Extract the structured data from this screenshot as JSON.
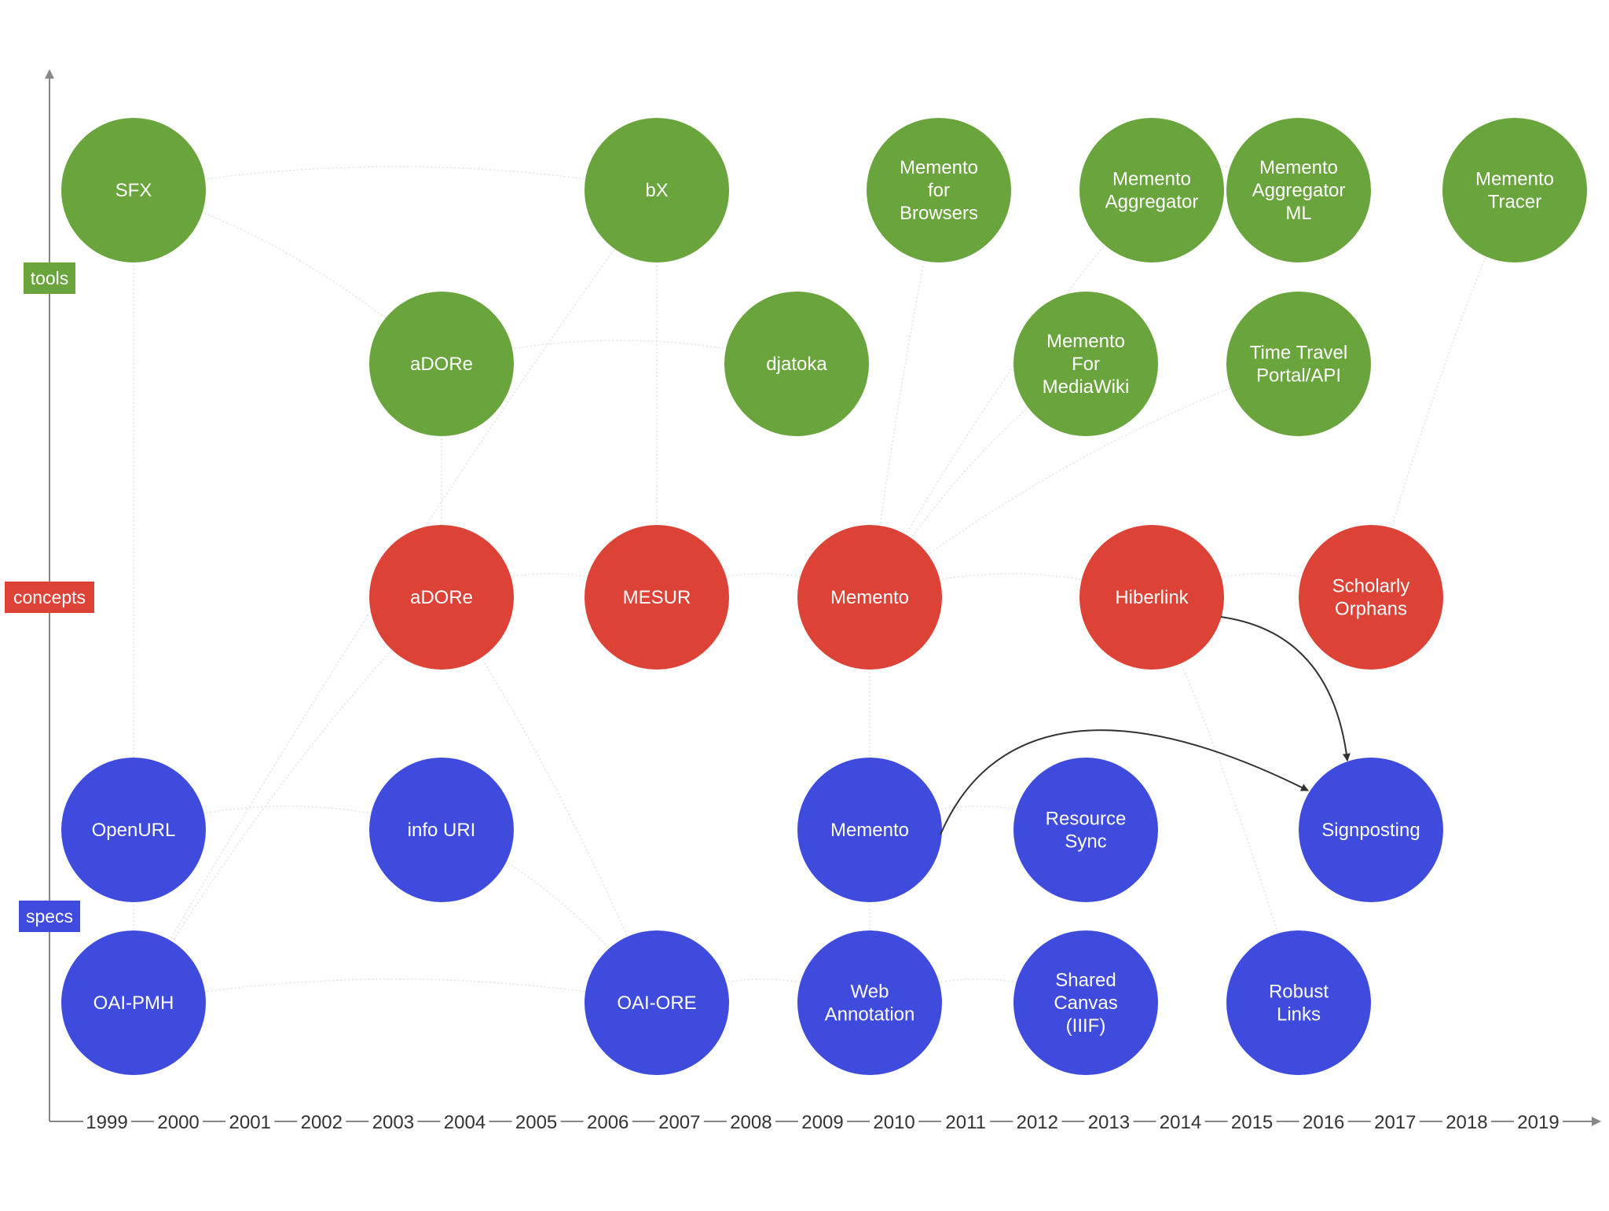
{
  "colors": {
    "tools": "#6aa43c",
    "concepts": "#dc4236",
    "specs": "#3f4bdc",
    "axis": "#888888",
    "faint_link": "#d9d9d9",
    "arrow": "#333333"
  },
  "categories": [
    {
      "id": "tools",
      "label": "tools"
    },
    {
      "id": "concepts",
      "label": "concepts"
    },
    {
      "id": "specs",
      "label": "specs"
    }
  ],
  "years": [
    "1999",
    "2000",
    "2001",
    "2002",
    "2003",
    "2004",
    "2005",
    "2006",
    "2007",
    "2008",
    "2009",
    "2010",
    "2011",
    "2012",
    "2013",
    "2014",
    "2015",
    "2016",
    "2017",
    "2018",
    "2019"
  ],
  "nodes": [
    {
      "id": "sfx",
      "cat": "tools",
      "lines": [
        "SFX"
      ]
    },
    {
      "id": "bx",
      "cat": "tools",
      "lines": [
        "bX"
      ]
    },
    {
      "id": "memento-browsers",
      "cat": "tools",
      "lines": [
        "Memento",
        "for",
        "Browsers"
      ]
    },
    {
      "id": "memento-aggregator",
      "cat": "tools",
      "lines": [
        "Memento",
        "Aggregator"
      ]
    },
    {
      "id": "memento-aggregator-ml",
      "cat": "tools",
      "lines": [
        "Memento",
        "Aggregator",
        "ML"
      ]
    },
    {
      "id": "memento-tracer",
      "cat": "tools",
      "lines": [
        "Memento",
        "Tracer"
      ]
    },
    {
      "id": "adore-tool",
      "cat": "tools",
      "lines": [
        "aDORe"
      ]
    },
    {
      "id": "djatoka",
      "cat": "tools",
      "lines": [
        "djatoka"
      ]
    },
    {
      "id": "memento-mediawiki",
      "cat": "tools",
      "lines": [
        "Memento",
        "For",
        "MediaWiki"
      ]
    },
    {
      "id": "time-travel",
      "cat": "tools",
      "lines": [
        "Time Travel",
        "Portal/API"
      ]
    },
    {
      "id": "adore-concept",
      "cat": "concepts",
      "lines": [
        "aDORe"
      ]
    },
    {
      "id": "mesur",
      "cat": "concepts",
      "lines": [
        "MESUR"
      ]
    },
    {
      "id": "memento-concept",
      "cat": "concepts",
      "lines": [
        "Memento"
      ]
    },
    {
      "id": "hiberlink",
      "cat": "concepts",
      "lines": [
        "Hiberlink"
      ]
    },
    {
      "id": "scholarly-orphans",
      "cat": "concepts",
      "lines": [
        "Scholarly",
        "Orphans"
      ]
    },
    {
      "id": "openurl",
      "cat": "specs",
      "lines": [
        "OpenURL"
      ]
    },
    {
      "id": "info-uri",
      "cat": "specs",
      "lines": [
        "info URI"
      ]
    },
    {
      "id": "memento-spec",
      "cat": "specs",
      "lines": [
        "Memento"
      ]
    },
    {
      "id": "resource-sync",
      "cat": "specs",
      "lines": [
        "Resource",
        "Sync"
      ]
    },
    {
      "id": "signposting",
      "cat": "specs",
      "lines": [
        "Signposting"
      ]
    },
    {
      "id": "oai-pmh",
      "cat": "specs",
      "lines": [
        "OAI-PMH"
      ]
    },
    {
      "id": "oai-ore",
      "cat": "specs",
      "lines": [
        "OAI-ORE"
      ]
    },
    {
      "id": "web-annotation",
      "cat": "specs",
      "lines": [
        "Web",
        "Annotation"
      ]
    },
    {
      "id": "shared-canvas",
      "cat": "specs",
      "lines": [
        "Shared",
        "Canvas",
        "(IIIF)"
      ]
    },
    {
      "id": "robust-links",
      "cat": "specs",
      "lines": [
        "Robust",
        "Links"
      ]
    }
  ],
  "arrows": [
    {
      "from": "hiberlink",
      "to": "signposting"
    },
    {
      "from": "memento-spec",
      "to": "signposting"
    }
  ],
  "faint_links": [
    [
      "sfx",
      "bx"
    ],
    [
      "sfx",
      "openurl"
    ],
    [
      "openurl",
      "info-uri"
    ],
    [
      "openurl",
      "oai-pmh"
    ],
    [
      "oai-pmh",
      "oai-ore"
    ],
    [
      "oai-pmh",
      "adore-concept"
    ],
    [
      "adore-concept",
      "adore-tool"
    ],
    [
      "adore-tool",
      "djatoka"
    ],
    [
      "adore-concept",
      "oai-ore"
    ],
    [
      "adore-concept",
      "mesur"
    ],
    [
      "mesur",
      "bx"
    ],
    [
      "mesur",
      "memento-concept"
    ],
    [
      "info-uri",
      "oai-ore"
    ],
    [
      "memento-concept",
      "memento-browsers"
    ],
    [
      "memento-concept",
      "memento-aggregator"
    ],
    [
      "memento-concept",
      "memento-mediawiki"
    ],
    [
      "memento-concept",
      "time-travel"
    ],
    [
      "memento-concept",
      "memento-spec"
    ],
    [
      "memento-concept",
      "hiberlink"
    ],
    [
      "hiberlink",
      "scholarly-orphans"
    ],
    [
      "hiberlink",
      "robust-links"
    ],
    [
      "memento-aggregator",
      "memento-aggregator-ml"
    ],
    [
      "scholarly-orphans",
      "memento-tracer"
    ],
    [
      "oai-ore",
      "web-annotation"
    ],
    [
      "web-annotation",
      "shared-canvas"
    ],
    [
      "memento-spec",
      "resource-sync"
    ],
    [
      "memento-spec",
      "web-annotation"
    ],
    [
      "sfx",
      "adore-tool"
    ],
    [
      "oai-pmh",
      "bx"
    ]
  ]
}
